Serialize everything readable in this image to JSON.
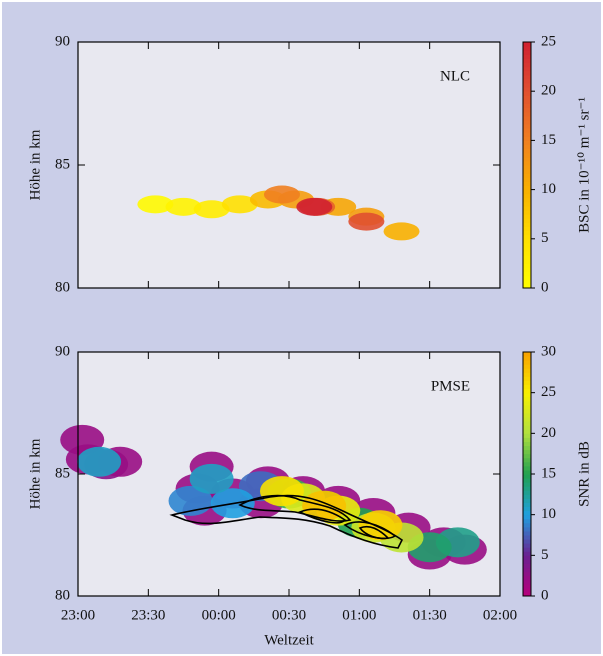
{
  "chart_data": [
    {
      "type": "heatmap",
      "title": "NLC",
      "ylabel": "Höhe in km",
      "clabel": "BSC in 10⁻¹⁰ m⁻¹ sr⁻¹",
      "xlim": [
        23,
        26
      ],
      "xticks": [
        23,
        23.5,
        24,
        24.5,
        25,
        25.5,
        26
      ],
      "ylim": [
        80,
        90
      ],
      "yticks": [
        80,
        85,
        90
      ],
      "clim": [
        0,
        25
      ],
      "cticks": [
        0,
        5,
        10,
        15,
        20,
        25
      ],
      "colors": [
        "#ffff00",
        "#ffe000",
        "#f8b000",
        "#f08020",
        "#e05030",
        "#d02030"
      ],
      "x": [
        23.55,
        23.75,
        23.95,
        24.15,
        24.35,
        24.55,
        24.85,
        25.05,
        25.3,
        24.45,
        24.7,
        25.05,
        24.68
      ],
      "y": [
        83.4,
        83.3,
        83.2,
        83.4,
        83.6,
        83.6,
        83.3,
        82.9,
        82.3,
        83.8,
        83.3,
        82.7,
        83.3
      ],
      "values": [
        1,
        2,
        3,
        5,
        9,
        12,
        11,
        12,
        10,
        15,
        18,
        20,
        25
      ]
    },
    {
      "type": "heatmap",
      "title": "PMSE",
      "ylabel": "Höhe in km",
      "xlabel": "Weltzeit",
      "clabel": "SNR in dB",
      "xlim": [
        23,
        26
      ],
      "xticks": [
        {
          "value": 23,
          "label": "23:00"
        },
        {
          "value": 23.5,
          "label": "23:30"
        },
        {
          "value": 24,
          "label": "00:00"
        },
        {
          "value": 24.5,
          "label": "00:30"
        },
        {
          "value": 25,
          "label": "01:00"
        },
        {
          "value": 25.5,
          "label": "01:30"
        },
        {
          "value": 26,
          "label": "02:00"
        }
      ],
      "ylim": [
        80,
        90
      ],
      "yticks": [
        80,
        85,
        90
      ],
      "clim": [
        0,
        30
      ],
      "cticks": [
        0,
        5,
        10,
        15,
        20,
        25,
        30
      ],
      "colors": [
        "#b8007c",
        "#6a2090",
        "#20a0e0",
        "#20a050",
        "#b0e040",
        "#f8f000",
        "#f8a000"
      ],
      "x": [
        23.03,
        23.07,
        23.2,
        23.3,
        23.95,
        23.85,
        24.1,
        24.35,
        24.6,
        24.85,
        25.1,
        25.35,
        25.6,
        25.75,
        25.5,
        24.3,
        23.9,
        24.3,
        23.8,
        24.1,
        23.95,
        23.15,
        25.7,
        25.5,
        25.0,
        24.5,
        24.75,
        25.3,
        25.1,
        24.6,
        24.85,
        24.45,
        25.15,
        24.75
      ],
      "y": [
        86.4,
        85.6,
        85.4,
        85.5,
        85.3,
        84.4,
        84.2,
        84.7,
        84.3,
        83.9,
        83.4,
        82.8,
        82.2,
        81.9,
        81.7,
        83.8,
        83.5,
        84.5,
        83.9,
        83.8,
        84.8,
        85.5,
        82.2,
        82.0,
        83.0,
        84.2,
        83.7,
        82.4,
        82.8,
        84.0,
        83.5,
        84.3,
        82.9,
        83.7
      ],
      "values": [
        2,
        2,
        3,
        2,
        2,
        2,
        2,
        2,
        2,
        2,
        2,
        2,
        2,
        2,
        2,
        2,
        2,
        8,
        9,
        10,
        11,
        11,
        13,
        14,
        15,
        16,
        17,
        21,
        22,
        23,
        24,
        26,
        27,
        28
      ]
    }
  ]
}
